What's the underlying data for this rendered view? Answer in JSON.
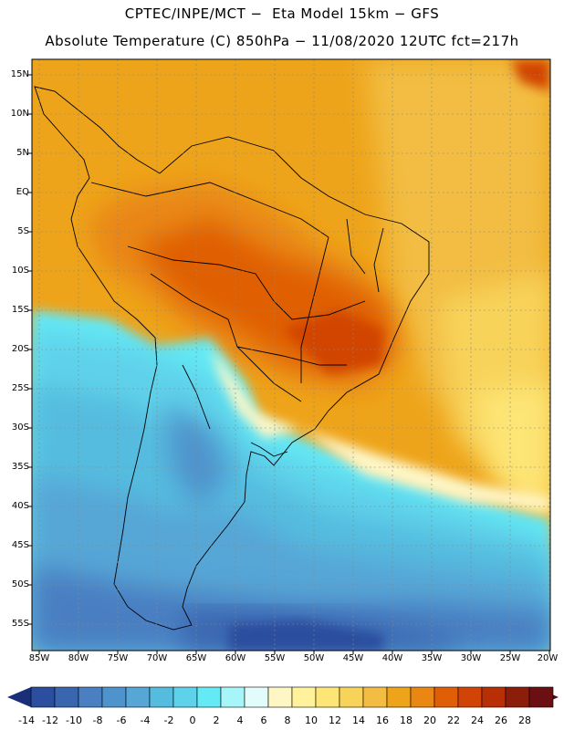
{
  "title": {
    "line1": "CPTEC/INPE/MCT −  Eta Model 15km − GFS",
    "line2": "Absolute Temperature (C) 850hPa − 11/08/2020 12UTC fct=217h"
  },
  "map": {
    "lat_labels": [
      "15N",
      "10N",
      "5N",
      "EQ",
      "5S",
      "10S",
      "15S",
      "20S",
      "25S",
      "30S",
      "35S",
      "40S",
      "45S",
      "50S",
      "55S"
    ],
    "lon_labels": [
      "85W",
      "80W",
      "75W",
      "70W",
      "65W",
      "60W",
      "55W",
      "50W",
      "45W",
      "40W",
      "35W",
      "30W",
      "25W",
      "20W"
    ]
  },
  "colorbar": {
    "labels": [
      "-14",
      "-12",
      "-10",
      "-8",
      "-6",
      "-4",
      "-2",
      "0",
      "2",
      "4",
      "6",
      "8",
      "10",
      "12",
      "14",
      "16",
      "18",
      "20",
      "22",
      "24",
      "26",
      "28"
    ],
    "colors": [
      "#2b4e9e",
      "#3a66b0",
      "#4a7fc2",
      "#4f93cc",
      "#56a6d6",
      "#55bcdf",
      "#5ed2ea",
      "#64eaf5",
      "#a6f6f9",
      "#e2fbfb",
      "#fff6c6",
      "#fff29a",
      "#fde576",
      "#f8d35a",
      "#f2bd42",
      "#eea41a",
      "#e98712",
      "#e05e06",
      "#d14406",
      "#b82e05",
      "#8d1d0b",
      "#6b0f12"
    ],
    "under_color": "#1a2f78",
    "over_color": "#5a0815"
  }
}
